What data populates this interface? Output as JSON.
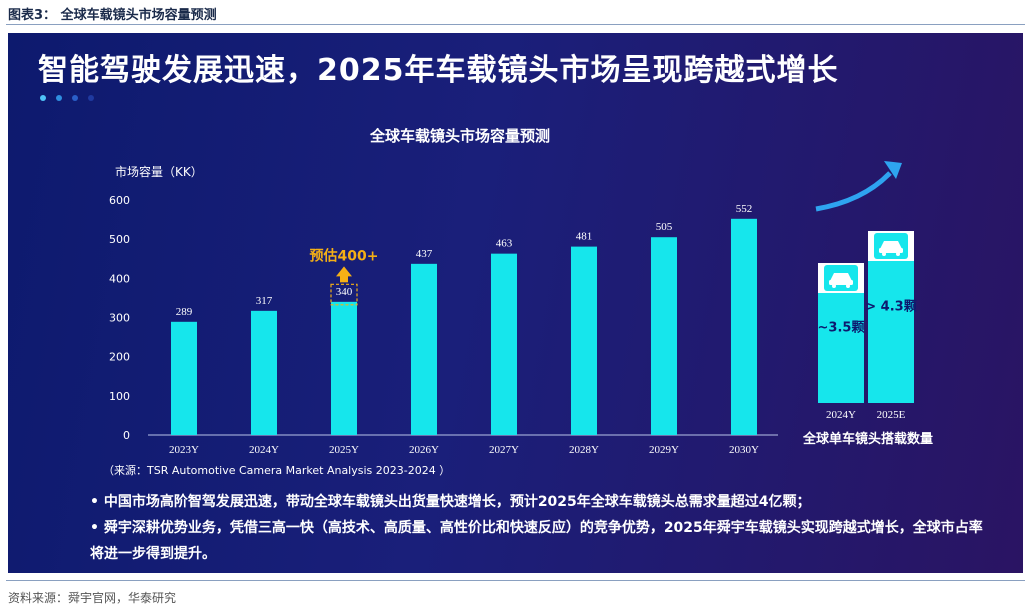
{
  "figure_caption": "图表3：  全球车载镜头市场容量预测",
  "headline": "智能驾驶发展迅速，2025年车载镜头市场呈现跨越式增长",
  "colors": {
    "bar": "#16e6ec",
    "panel_start": "#0d1a6e",
    "panel_end": "#2a1463",
    "highlight": "#f5b015",
    "arrow": "#2ea4f0",
    "axis": "#b8c4e8"
  },
  "chart_data": [
    {
      "type": "bar",
      "title": "全球车载镜头市场容量预测",
      "ylabel": "市场容量（KK）",
      "categories": [
        "2023Y",
        "2024Y",
        "2025Y",
        "2026Y",
        "2027Y",
        "2028Y",
        "2029Y",
        "2030Y"
      ],
      "values": [
        289,
        317,
        340,
        437,
        463,
        481,
        505,
        552
      ],
      "yticks": [
        0,
        100,
        200,
        300,
        400,
        500,
        600
      ],
      "ylim": [
        0,
        600
      ],
      "annotation": "预估400+",
      "annotation_category": "2025Y",
      "source_note": "（来源：TSR Automotive Camera Market Analysis 2023-2024 ）",
      "grid": false
    },
    {
      "type": "bar",
      "title": "全球单车镜头搭载数量",
      "categories": [
        "2024Y",
        "2025E"
      ],
      "values": [
        3.5,
        4.3
      ],
      "value_labels": [
        "~3.5颗",
        "> 4.3颗"
      ],
      "icons": [
        "car-icon",
        "car-icon"
      ]
    }
  ],
  "bullets": [
    "• 中国市场高阶智驾发展迅速，带动全球车载镜头出货量快速增长，预计2025年全球车载镜头总需求量超过4亿颗；",
    "• 舜宇深耕优势业务，凭借三高一快（高技术、高质量、高性价比和快速反应）的竞争优势，2025年舜宇车载镜头实现跨越式增长，全球市占率将进一步得到提升。"
  ],
  "source": "资料来源：舜宇官网，华泰研究"
}
